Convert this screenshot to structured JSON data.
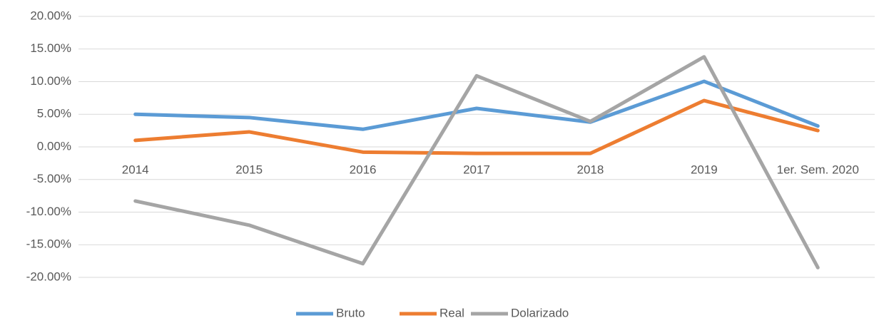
{
  "chart_data": {
    "type": "line",
    "categories": [
      "2014",
      "2015",
      "2016",
      "2017",
      "2018",
      "2019",
      "1er. Sem. 2020"
    ],
    "series": [
      {
        "name": "Bruto",
        "color": "#5b9bd5",
        "values": [
          5.0,
          4.5,
          2.7,
          5.9,
          3.8,
          10.05,
          3.2
        ]
      },
      {
        "name": "Real",
        "color": "#ed7d31",
        "values": [
          1.0,
          2.3,
          -0.8,
          -1.0,
          -1.0,
          7.1,
          2.5
        ]
      },
      {
        "name": "Dolarizado",
        "color": "#a5a5a5",
        "values": [
          -8.3,
          -12.0,
          -17.9,
          10.9,
          3.9,
          13.8,
          -18.5
        ]
      }
    ],
    "ylim": [
      -20,
      20
    ],
    "yticks": [
      {
        "value": -20,
        "label": "-20.00%"
      },
      {
        "value": -15,
        "label": "-15.00%"
      },
      {
        "value": -10,
        "label": "-10.00%"
      },
      {
        "value": -5,
        "label": "-5.00%"
      },
      {
        "value": 0,
        "label": "0.00%"
      },
      {
        "value": 5,
        "label": "5.00%"
      },
      {
        "value": 10,
        "label": "10.00%"
      },
      {
        "value": 15,
        "label": "15.00%"
      },
      {
        "value": 20,
        "label": "20.00%"
      }
    ],
    "grid": true,
    "legend": "bottom"
  }
}
